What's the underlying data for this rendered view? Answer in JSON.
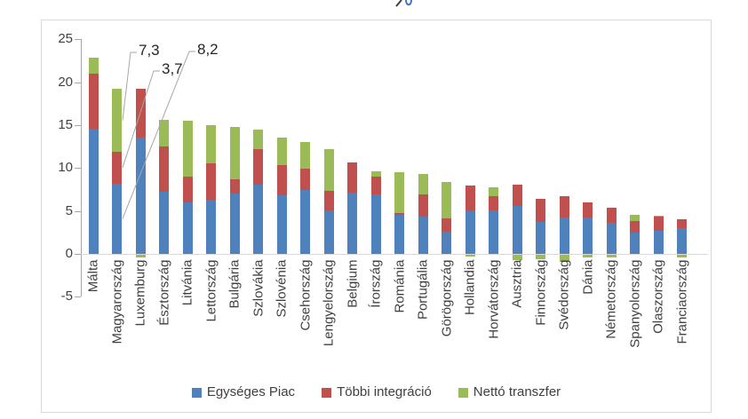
{
  "chart_data": {
    "type": "bar",
    "stacked": true,
    "categories": [
      "Málta",
      "Magyarország",
      "Luxemburg",
      "Észtország",
      "Litvánia",
      "Lettország",
      "Bulgária",
      "Szlovákia",
      "Szlovénia",
      "Csehország",
      "Lengyelország",
      "Belgium",
      "Írország",
      "Románia",
      "Portugália",
      "Görögország",
      "Hollandia",
      "Horvátország",
      "Ausztria",
      "Finnország",
      "Svédország",
      "Dánia",
      "Németország",
      "Spanyolország",
      "Olaszország",
      "Franciaország"
    ],
    "series": [
      {
        "name": "Egységes Piac",
        "color": "#4F81BD",
        "values": [
          14.6,
          8.2,
          13.5,
          7.2,
          6.0,
          6.3,
          7.0,
          8.1,
          6.8,
          7.4,
          5.1,
          7.1,
          6.9,
          4.5,
          4.3,
          2.6,
          5.1,
          5.1,
          5.6,
          3.7,
          4.2,
          4.2,
          3.6,
          2.5,
          2.7,
          3.0
        ]
      },
      {
        "name": "Többi integráció",
        "color": "#C0504D",
        "values": [
          6.4,
          3.7,
          5.7,
          5.3,
          3.0,
          4.2,
          1.7,
          4.1,
          3.5,
          2.5,
          2.2,
          3.6,
          2.1,
          0.3,
          2.6,
          1.5,
          2.9,
          1.6,
          2.5,
          2.7,
          2.5,
          1.8,
          1.8,
          1.3,
          1.6,
          1.0
        ]
      },
      {
        "name": "Nettó transzfer",
        "color": "#9BBB59",
        "values": [
          1.9,
          7.3,
          -0.3,
          3.1,
          6.5,
          4.5,
          6.1,
          2.3,
          3.2,
          3.1,
          4.9,
          0,
          0.6,
          4.7,
          2.4,
          4.3,
          -0.2,
          1.1,
          -0.6,
          -0.5,
          -0.8,
          -0.3,
          -0.3,
          0.7,
          0.15,
          -0.3
        ]
      }
    ],
    "y_ticks": [
      25,
      20,
      15,
      10,
      5,
      0,
      -5
    ],
    "ylim": [
      -5,
      25
    ],
    "grid": false,
    "legend_position": "bottom",
    "annotations": [
      {
        "label": "7,3",
        "target_category": "Magyarország",
        "target_series": "Nettó transzfer"
      },
      {
        "label": "3,7",
        "target_category": "Magyarország",
        "target_series": "Többi integráció"
      },
      {
        "label": "8,2",
        "target_category": "Magyarország",
        "target_series": "Egységes Piac"
      }
    ],
    "colors": {
      "axis": "#A6A6A6",
      "zero_line": "#D9D9D9",
      "chart_border": "#D9D9D9",
      "text": "#404040",
      "leader_line": "#A6A6A6"
    }
  }
}
